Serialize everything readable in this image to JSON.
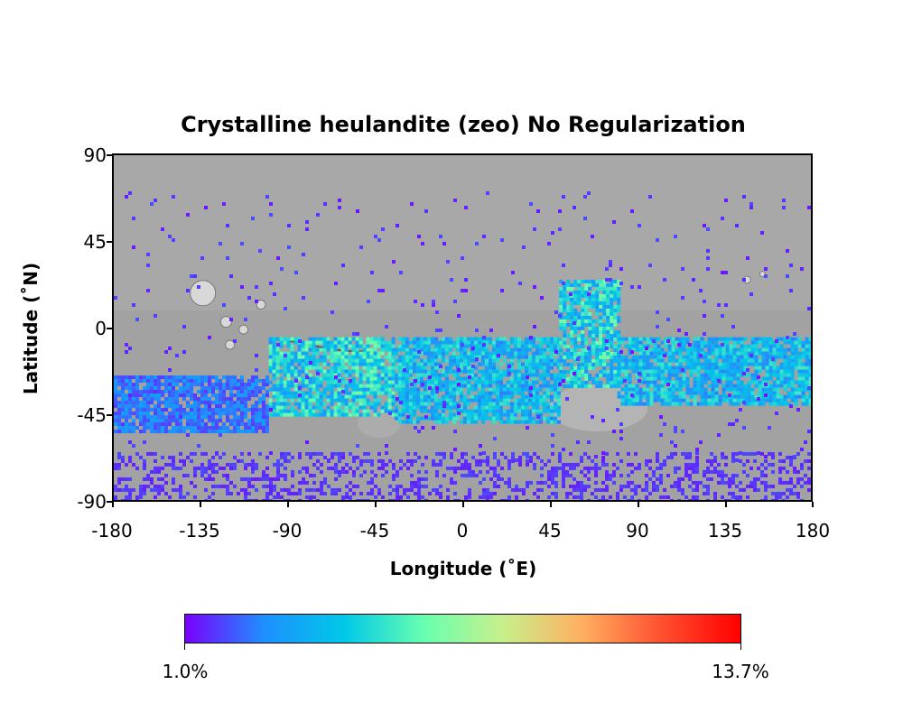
{
  "title": "Crystalline heulandite (zeo) No Regularization",
  "axes": {
    "xlabel": "Longitude (˚E)",
    "ylabel": "Latitude (˚N)",
    "xticks": [
      "-180",
      "-135",
      "-90",
      "-45",
      "0",
      "45",
      "90",
      "135",
      "180"
    ],
    "yticks": [
      "90",
      "45",
      "0",
      "-45",
      "-90"
    ],
    "xlim": [
      -180,
      180
    ],
    "ylim": [
      -90,
      90
    ]
  },
  "colorbar": {
    "min_label": "1.0%",
    "max_label": "13.7%",
    "colormap": "rainbow",
    "colors": [
      "#7a00ff",
      "#1e90ff",
      "#00c8e8",
      "#66ffb0",
      "#c8f08c",
      "#ffb060",
      "#ff5030",
      "#ff0000"
    ]
  },
  "basemap": "grayscale shaded relief of Mars",
  "chart_data": {
    "type": "heatmap",
    "title": "Crystalline heulandite (zeo) No Regularization",
    "xlabel": "Longitude (˚E)",
    "ylabel": "Latitude (˚N)",
    "xlim": [
      -180,
      180
    ],
    "ylim": [
      -90,
      90
    ],
    "value_range_percent": [
      1.0,
      13.7
    ],
    "bands": [
      {
        "lon": [
          -180,
          -100
        ],
        "lat": [
          -55,
          -25
        ],
        "level": 0.12
      },
      {
        "lon": [
          -100,
          -35
        ],
        "lat": [
          -45,
          -5
        ],
        "level": 0.3
      },
      {
        "lon": [
          -35,
          50
        ],
        "lat": [
          -50,
          -5
        ],
        "level": 0.25
      },
      {
        "lon": [
          50,
          80
        ],
        "lat": [
          -30,
          25
        ],
        "level": 0.3
      },
      {
        "lon": [
          80,
          180
        ],
        "lat": [
          -40,
          -5
        ],
        "level": 0.25
      },
      {
        "lon": [
          -180,
          180
        ],
        "lat": [
          -90,
          -65
        ],
        "level": 0.05
      }
    ]
  }
}
